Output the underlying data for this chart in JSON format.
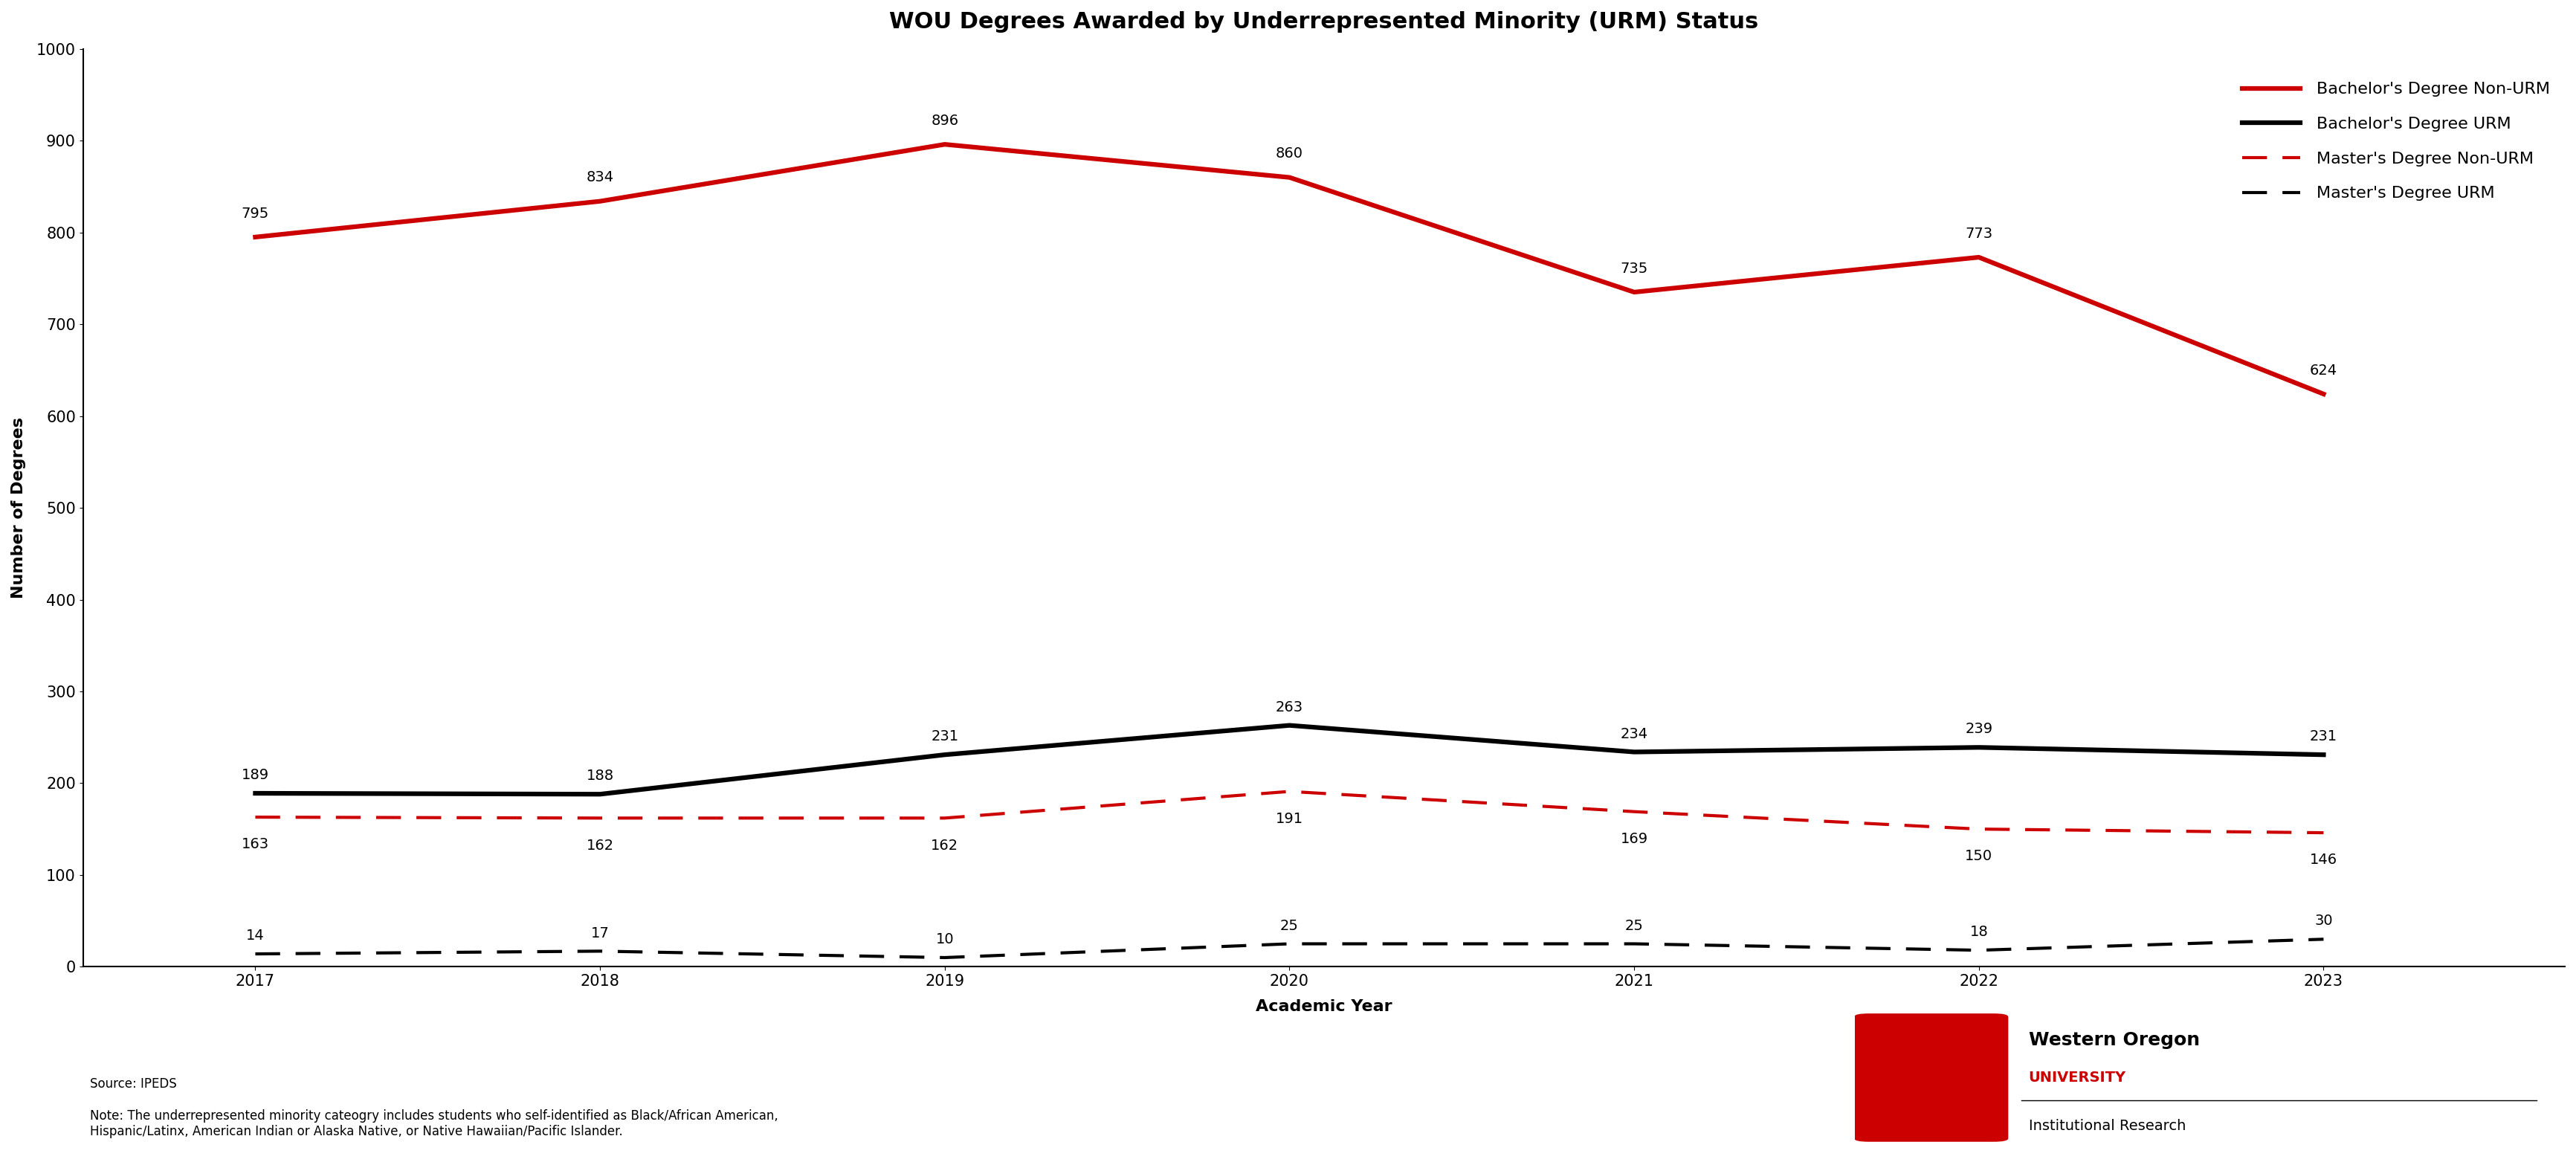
{
  "title": "WOU Degrees Awarded by Underrepresented Minority (URM) Status",
  "years": [
    2017,
    2018,
    2019,
    2020,
    2021,
    2022,
    2023
  ],
  "bach_non_urm": [
    795,
    834,
    896,
    860,
    735,
    773,
    624
  ],
  "bach_urm": [
    189,
    188,
    231,
    263,
    234,
    239,
    231
  ],
  "masters_non_urm": [
    163,
    162,
    162,
    191,
    169,
    150,
    146
  ],
  "masters_urm": [
    14,
    17,
    10,
    25,
    25,
    18,
    30
  ],
  "color_red": "#CC0000",
  "color_black": "#000000",
  "xlabel": "Academic Year",
  "ylabel": "Number of Degrees",
  "ylim": [
    0,
    1000
  ],
  "yticks": [
    0,
    100,
    200,
    300,
    400,
    500,
    600,
    700,
    800,
    900,
    1000
  ],
  "legend_labels": [
    "Bachelor's Degree Non-URM",
    "Bachelor's Degree URM",
    "Master's Degree Non-URM",
    "Master's Degree URM"
  ],
  "source_text": "Source: IPEDS",
  "note_text": "Note: The underrepresented minority cateogry includes students who self-identified as Black/African American,\nHispanic/Latinx, American Indian or Alaska Native, or Native Hawaiian/Pacific Islander.",
  "title_fontsize": 22,
  "label_fontsize": 16,
  "tick_fontsize": 15,
  "legend_fontsize": 16,
  "annotation_fontsize": 14,
  "line_width": 3.0,
  "background_color": "#FFFFFF"
}
